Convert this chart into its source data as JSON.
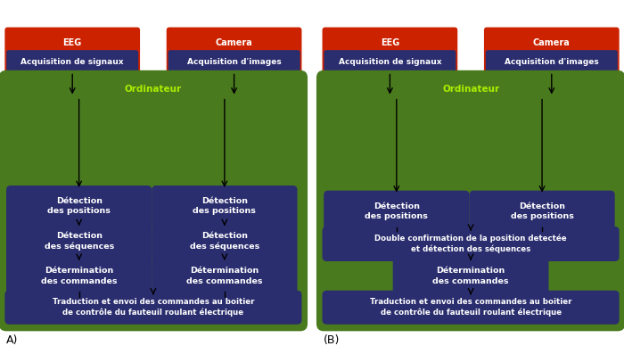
{
  "bg_color": "#ffffff",
  "red_color": "#cc2200",
  "dark_blue": "#2a2d6e",
  "green_color": "#4a7a1e",
  "text_white": "#ffffff",
  "text_green": "#aaee00",
  "diagram_A": {
    "label": "A)",
    "eeg_title": "EEG",
    "eeg_sub": "Acquisition de signaux",
    "cam_title": "Camera",
    "cam_sub": "Acquisition d'images",
    "ordinateur": "Ordinateur",
    "row1_left": "Détection\ndes positions",
    "row1_right": "Détection\ndes positions",
    "row2_left": "Détection\ndes séquences",
    "row2_right": "Détection\ndes séquences",
    "row3_left": "Détermination\ndes commandes",
    "row3_right": "Détermination\ndes commandes",
    "bottom_box": "Traduction et envoi des commandes au boitier\nde contrôle du fauteuil roulant électrique"
  },
  "diagram_B": {
    "label": "(B)",
    "eeg_title": "EEG",
    "eeg_sub": "Acquisition de signaux",
    "cam_title": "Camera",
    "cam_sub": "Acquisition d'images",
    "ordinateur": "Ordinateur",
    "row1_left": "Détection\ndes positions",
    "row1_right": "Détection\ndes positions",
    "middle_box": "Double confirmation de la position detectée\net détection des séquences",
    "lower_box": "Détermination\ndes commandes",
    "bottom_box": "Traduction et envoi des commandes au boitier\nde contrôle du fauteuil roulant électrique"
  }
}
